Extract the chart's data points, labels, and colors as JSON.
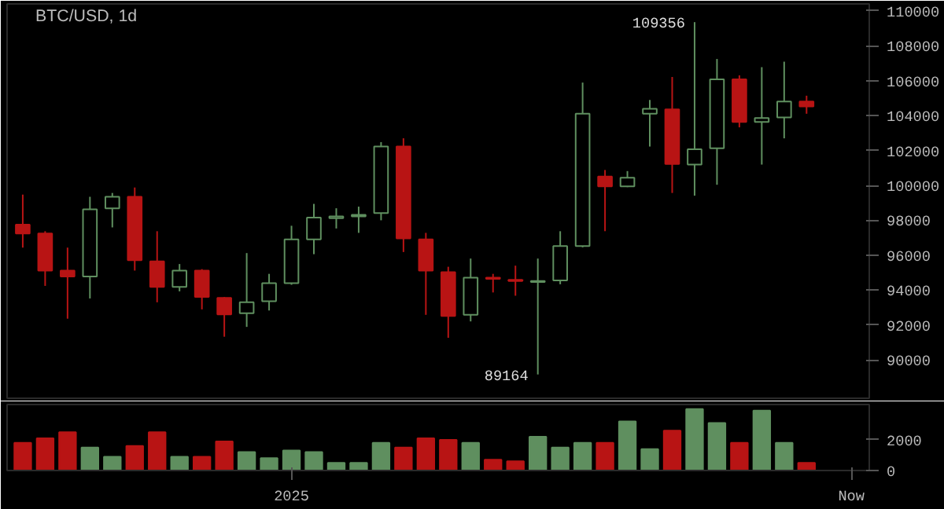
{
  "chart_data": [
    {
      "type": "candlestick",
      "title": "BTC/USD, 1d",
      "categories": [
        null,
        null,
        null,
        null,
        null,
        null,
        null,
        null,
        null,
        null,
        null,
        null,
        null,
        null,
        null,
        null,
        null,
        null,
        null,
        null,
        null,
        null,
        null,
        null,
        null,
        null,
        null,
        null,
        null,
        null,
        null,
        null,
        null,
        null,
        null,
        null
      ],
      "ohlc": [
        [
          97749,
          99472,
          96433,
          97248
        ],
        [
          97248,
          97373,
          94240,
          95117
        ],
        [
          95117,
          96433,
          92360,
          94773
        ],
        [
          94773,
          99347,
          93519,
          98626
        ],
        [
          98689,
          99566,
          97592,
          99347
        ],
        [
          99347,
          99879,
          95117,
          95712
        ],
        [
          95650,
          97373,
          93300,
          94177
        ],
        [
          94177,
          95493,
          93927,
          95117
        ],
        [
          95117,
          95200,
          92893,
          93613
        ],
        [
          93550,
          93600,
          91326,
          92611
        ],
        [
          92673,
          96120,
          91890,
          93300
        ],
        [
          93362,
          94929,
          92830,
          94397
        ],
        [
          94397,
          97686,
          94303,
          96903
        ],
        [
          96903,
          98940,
          96057,
          98156
        ],
        [
          98125,
          98689,
          97530,
          98219
        ],
        [
          98219,
          98783,
          97279,
          98313
        ],
        [
          98410,
          102480,
          98000,
          102226
        ],
        [
          102226,
          102700,
          96180,
          96962
        ],
        [
          96903,
          97279,
          92580,
          95117
        ],
        [
          95023,
          95336,
          91264,
          92517
        ],
        [
          92580,
          95806,
          92204,
          94710
        ],
        [
          94710,
          94929,
          93864,
          94647
        ],
        [
          94585,
          95399,
          93676,
          94522
        ],
        [
          94460,
          95806,
          89164,
          94522
        ],
        [
          94554,
          97373,
          94334,
          96527
        ],
        [
          96527,
          105892,
          96450,
          104106
        ],
        [
          100506,
          100882,
          97376,
          99942
        ],
        [
          99942,
          100820,
          99900,
          100443
        ],
        [
          104106,
          104896,
          102226,
          104388
        ],
        [
          104360,
          106212,
          99566,
          101230
        ],
        [
          101192,
          109356,
          99410,
          102076
        ],
        [
          102132,
          107245,
          100036,
          106080
        ],
        [
          106080,
          106306,
          103326,
          103636
        ],
        [
          103636,
          106776,
          101192,
          103862
        ],
        [
          103890,
          107090,
          102696,
          104802
        ],
        [
          104802,
          105140,
          104106,
          104520
        ]
      ],
      "colors": [
        "#b81414",
        "#b81414",
        "#b81414",
        "#5f8f5f",
        "#5f8f5f",
        "#b81414",
        "#b81414",
        "#5f8f5f",
        "#b81414",
        "#b81414",
        "#5f8f5f",
        "#5f8f5f",
        "#5f8f5f",
        "#5f8f5f",
        "#5f8f5f",
        "#5f8f5f",
        "#5f8f5f",
        "#b81414",
        "#b81414",
        "#b81414",
        "#5f8f5f",
        "#b81414",
        "#b81414",
        "#5f8f5f",
        "#5f8f5f",
        "#5f8f5f",
        "#b81414",
        "#5f8f5f",
        "#5f8f5f",
        "#b81414",
        "#5f8f5f",
        "#5f8f5f",
        "#b81414",
        "#5f8f5f",
        "#5f8f5f",
        "#b81414"
      ],
      "ylim": [
        87800,
        110400
      ],
      "yticks": [
        90000,
        92000,
        94000,
        96000,
        98000,
        100000,
        102000,
        104000,
        106000,
        108000,
        110000
      ],
      "tick_labels": "y",
      "annotations": [
        "109356",
        "89164"
      ]
    },
    {
      "type": "bar",
      "categories": [
        null,
        null,
        null,
        null,
        null,
        null,
        null,
        null,
        null,
        null,
        null,
        null,
        "2025",
        null,
        null,
        null,
        null,
        null,
        null,
        null,
        null,
        null,
        null,
        null,
        null,
        null,
        null,
        null,
        null,
        null,
        null,
        null,
        null,
        null,
        null,
        null,
        null,
        "Now"
      ],
      "values": [
        1800,
        2100,
        2500,
        1500,
        900,
        1600,
        2500,
        900,
        900,
        1900,
        1200,
        800,
        1300,
        1200,
        500,
        500,
        1800,
        1500,
        2100,
        2000,
        1800,
        700,
        600,
        2200,
        1500,
        1800,
        1800,
        3200,
        1400,
        2600,
        4000,
        3100,
        1800,
        3900,
        1800,
        500,
        null,
        null
      ],
      "colors": [
        "#b81414",
        "#b81414",
        "#b81414",
        "#5f8f5f",
        "#5f8f5f",
        "#b81414",
        "#b81414",
        "#5f8f5f",
        "#b81414",
        "#b81414",
        "#5f8f5f",
        "#5f8f5f",
        "#5f8f5f",
        "#5f8f5f",
        "#5f8f5f",
        "#5f8f5f",
        "#5f8f5f",
        "#b81414",
        "#b81414",
        "#b81414",
        "#5f8f5f",
        "#b81414",
        "#b81414",
        "#5f8f5f",
        "#5f8f5f",
        "#5f8f5f",
        "#b81414",
        "#5f8f5f",
        "#5f8f5f",
        "#b81414",
        "#5f8f5f",
        "#5f8f5f",
        "#b81414",
        "#5f8f5f",
        "#5f8f5f",
        "#b81414",
        "#000000",
        "#000000"
      ],
      "ylim": [
        0,
        4300
      ],
      "yticks": [
        0,
        2000
      ]
    }
  ]
}
